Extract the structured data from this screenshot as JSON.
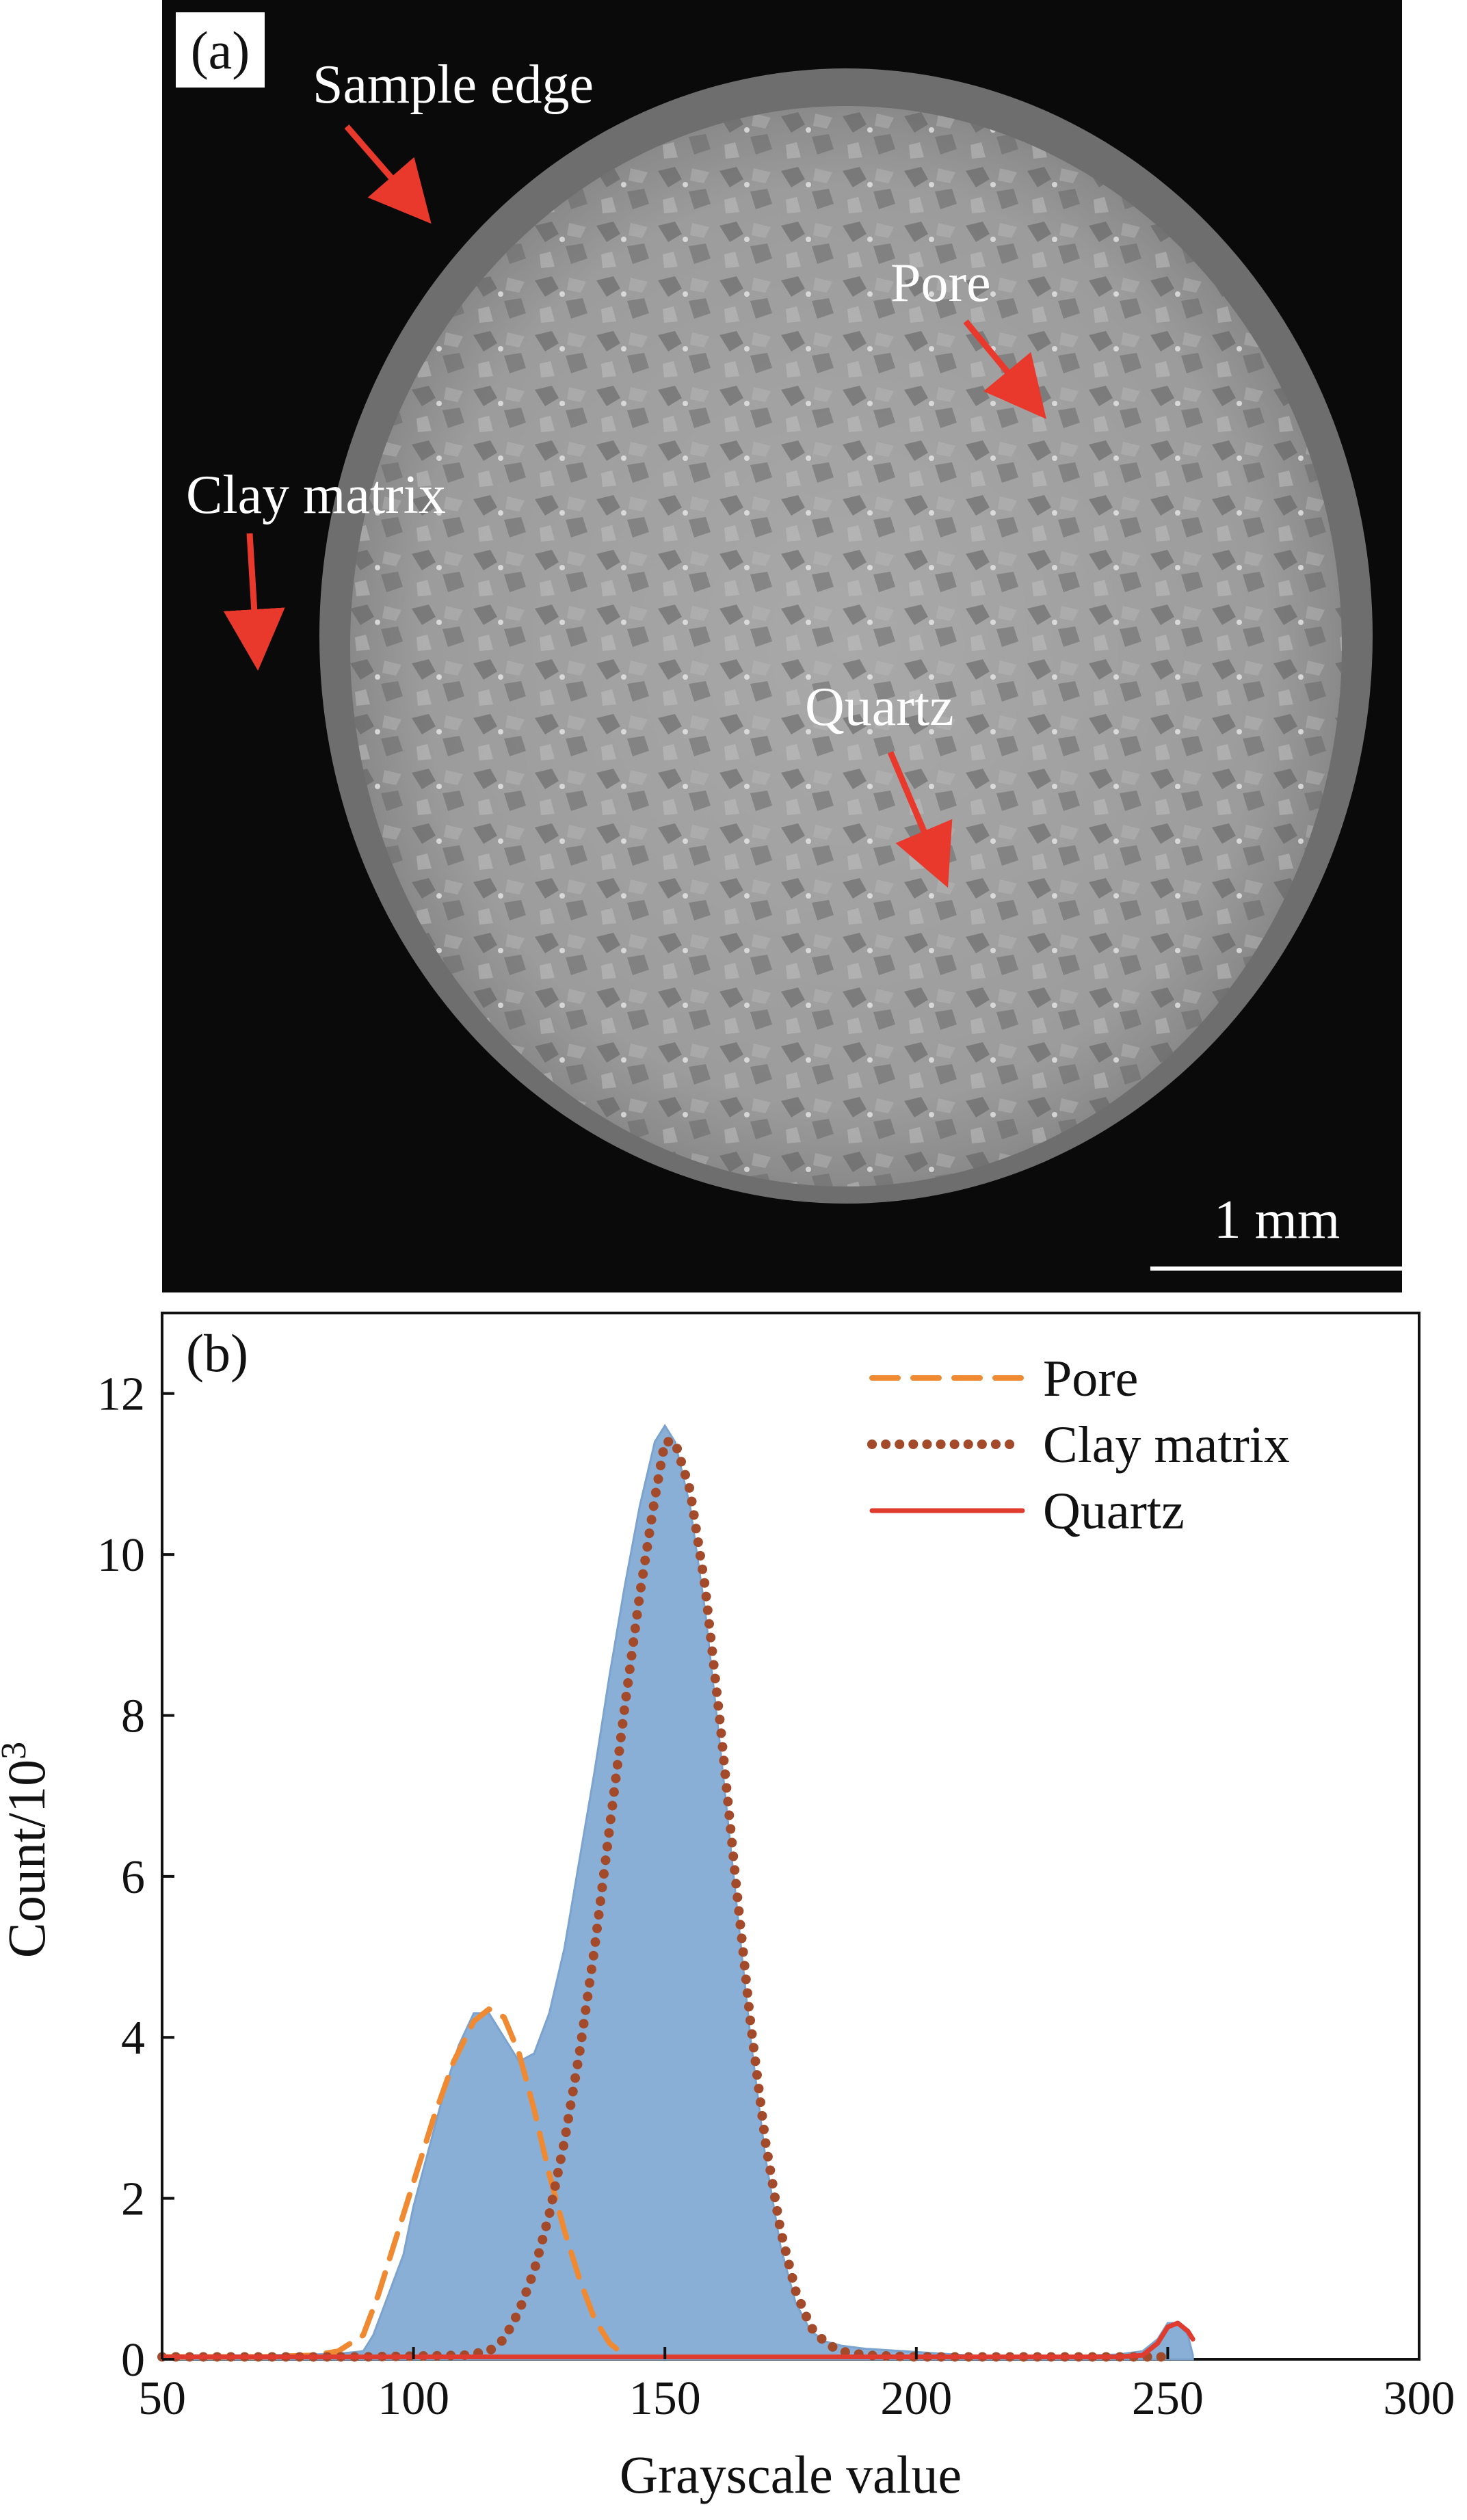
{
  "panel_a": {
    "label": "(a)",
    "annotations": [
      {
        "text": "Sample edge"
      },
      {
        "text": "Pore"
      },
      {
        "text": "Clay matrix"
      },
      {
        "text": "Quartz"
      }
    ],
    "scale_bar": {
      "text": "1 mm"
    },
    "colors": {
      "background": "#0a0a0a",
      "arrow": "#e8392c",
      "text": "#ffffff"
    }
  },
  "chart_data": {
    "type": "area",
    "panel_label": "(b)",
    "title": "",
    "xlabel": "Grayscale value",
    "ylabel": "Count/10",
    "ylabel_superscript": "3",
    "xlim": [
      50,
      300
    ],
    "ylim": [
      0,
      13
    ],
    "xticks": [
      50,
      100,
      150,
      200,
      250,
      300
    ],
    "yticks": [
      0,
      2,
      4,
      6,
      8,
      10,
      12
    ],
    "legend_position": "top-right",
    "histogram": {
      "color": "#8aafd6",
      "x": [
        50,
        60,
        70,
        80,
        85,
        90,
        92,
        95,
        98,
        100,
        103,
        106,
        109,
        112,
        115,
        118,
        121,
        124,
        127,
        130,
        133,
        136,
        139,
        142,
        145,
        148,
        150,
        152,
        155,
        158,
        161,
        164,
        167,
        170,
        173,
        176,
        179,
        182,
        185,
        190,
        195,
        200,
        205,
        210,
        220,
        230,
        240,
        245,
        248,
        250,
        252,
        254,
        255
      ],
      "values": [
        0.05,
        0.05,
        0.05,
        0.06,
        0.07,
        0.1,
        0.3,
        0.8,
        1.3,
        1.9,
        2.6,
        3.3,
        3.9,
        4.3,
        4.3,
        4.0,
        3.7,
        3.8,
        4.3,
        5.1,
        6.2,
        7.3,
        8.5,
        9.6,
        10.6,
        11.4,
        11.6,
        11.4,
        10.6,
        9.3,
        7.6,
        5.8,
        4.0,
        2.5,
        1.4,
        0.7,
        0.35,
        0.22,
        0.17,
        0.13,
        0.11,
        0.09,
        0.07,
        0.05,
        0.04,
        0.04,
        0.06,
        0.1,
        0.25,
        0.45,
        0.45,
        0.3,
        0.05
      ]
    },
    "series": [
      {
        "name": "Pore",
        "color": "#ef8a32",
        "style": "dashed",
        "x": [
          50,
          60,
          70,
          80,
          85,
          90,
          93,
          96,
          100,
          104,
          108,
          112,
          115,
          118,
          121,
          124,
          127,
          130,
          133,
          136,
          139,
          142
        ],
        "values": [
          0.03,
          0.03,
          0.03,
          0.05,
          0.1,
          0.3,
          0.8,
          1.4,
          2.2,
          3.0,
          3.7,
          4.2,
          4.35,
          4.25,
          3.8,
          3.1,
          2.3,
          1.6,
          1.0,
          0.5,
          0.2,
          0.05
        ]
      },
      {
        "name": "Clay matrix",
        "color": "#a34a2a",
        "style": "dotted",
        "x": [
          50,
          70,
          90,
          110,
          115,
          118,
          121,
          124,
          127,
          130,
          133,
          136,
          139,
          142,
          145,
          148,
          150,
          152,
          155,
          158,
          161,
          164,
          167,
          170,
          173,
          176,
          179,
          182,
          185,
          190,
          200,
          220,
          240,
          250
        ],
        "values": [
          0.03,
          0.03,
          0.03,
          0.05,
          0.1,
          0.25,
          0.6,
          1.1,
          1.8,
          2.7,
          3.8,
          5.1,
          6.6,
          8.1,
          9.5,
          10.7,
          11.4,
          11.4,
          10.8,
          9.6,
          7.9,
          6.0,
          4.2,
          2.7,
          1.6,
          0.85,
          0.4,
          0.2,
          0.1,
          0.05,
          0.03,
          0.03,
          0.03,
          0.03
        ]
      },
      {
        "name": "Quartz",
        "color": "#e03b2f",
        "style": "solid",
        "x": [
          50,
          100,
          150,
          200,
          240,
          245,
          248,
          250,
          252,
          254,
          255
        ],
        "values": [
          0.03,
          0.03,
          0.03,
          0.03,
          0.03,
          0.05,
          0.2,
          0.4,
          0.45,
          0.35,
          0.25
        ]
      }
    ]
  }
}
